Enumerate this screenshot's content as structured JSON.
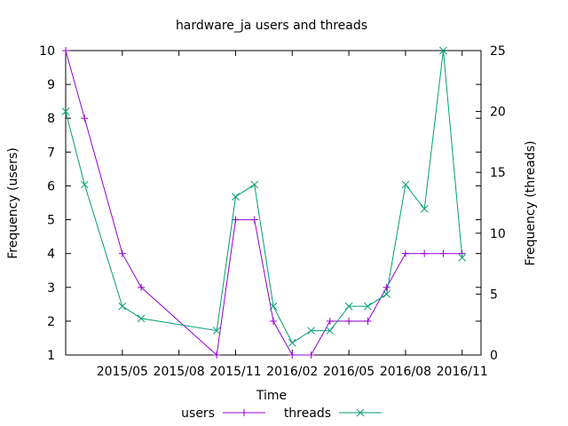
{
  "chart_data": {
    "type": "line",
    "title": "hardware_ja users and threads",
    "xlabel": "Time",
    "ylabel_left": "Frequency (users)",
    "ylabel_right": "Frequency (threads)",
    "x_ticks": [
      "2015/05",
      "2015/08",
      "2015/11",
      "2016/02",
      "2016/05",
      "2016/08",
      "2016/11"
    ],
    "y_left_ticks": [
      "1",
      "2",
      "3",
      "4",
      "5",
      "6",
      "7",
      "8",
      "9",
      "10"
    ],
    "y_right_ticks": [
      "0",
      "5",
      "10",
      "15",
      "20",
      "25"
    ],
    "y_left_range": [
      1,
      10
    ],
    "y_right_range": [
      0,
      25
    ],
    "x_range": [
      "2015-02",
      "2016-12"
    ],
    "grid": false,
    "legend_position": "bottom-center",
    "x": [
      "2015-02",
      "2015-03",
      "2015-05",
      "2015-06",
      "2015-10",
      "2015-11",
      "2015-12",
      "2016-01",
      "2016-02",
      "2016-03",
      "2016-04",
      "2016-05",
      "2016-06",
      "2016-07",
      "2016-08",
      "2016-09",
      "2016-10",
      "2016-11",
      "2016-12"
    ],
    "series": [
      {
        "name": "users",
        "axis": "left",
        "color": "#9400d3",
        "marker": "plus",
        "values": [
          10,
          8,
          4,
          3,
          1,
          5,
          5,
          2,
          1,
          1,
          2,
          2,
          2,
          3,
          4,
          4,
          4,
          4,
          null
        ]
      },
      {
        "name": "threads",
        "axis": "right",
        "color": "#009e73",
        "marker": "cross",
        "values": [
          20,
          14,
          4,
          3,
          2,
          13,
          14,
          4,
          1,
          2,
          2,
          4,
          4,
          5,
          14,
          12,
          25,
          8,
          null
        ]
      }
    ]
  }
}
